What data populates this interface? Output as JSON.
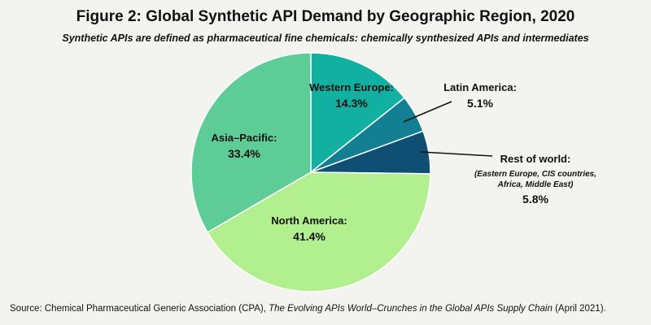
{
  "title": "Figure 2: Global Synthetic API Demand by Geographic Region, 2020",
  "subtitle": "Synthetic APIs are defined as pharmaceutical fine chemicals: chemically synthesized APIs and intermediates",
  "source": {
    "prefix": "Source: Chemical Pharmaceutical Generic Association (CPA), ",
    "publication": "The Evolving APIs World–Crunches in the Global APIs Supply Chain",
    "suffix": " (April 2021)."
  },
  "chart_data": {
    "type": "pie",
    "unit": "%",
    "slices": [
      {
        "name": "Western Europe:",
        "value": 14.3,
        "value_label": "14.3%",
        "color": "#12b0a0"
      },
      {
        "name": "Latin America:",
        "value": 5.1,
        "value_label": "5.1%",
        "color": "#137f93"
      },
      {
        "name": "Rest of world:",
        "note": [
          "(Eastern Europe, CIS countries,",
          "Africa, Middle East)"
        ],
        "value": 5.8,
        "value_label": "5.8%",
        "color": "#0f4f73"
      },
      {
        "name": "North America:",
        "value": 41.4,
        "value_label": "41.4%",
        "color": "#b2ef8e"
      },
      {
        "name": "Asia–Pacific:",
        "value": 33.4,
        "value_label": "33.4%",
        "color": "#5dcc96"
      }
    ]
  }
}
